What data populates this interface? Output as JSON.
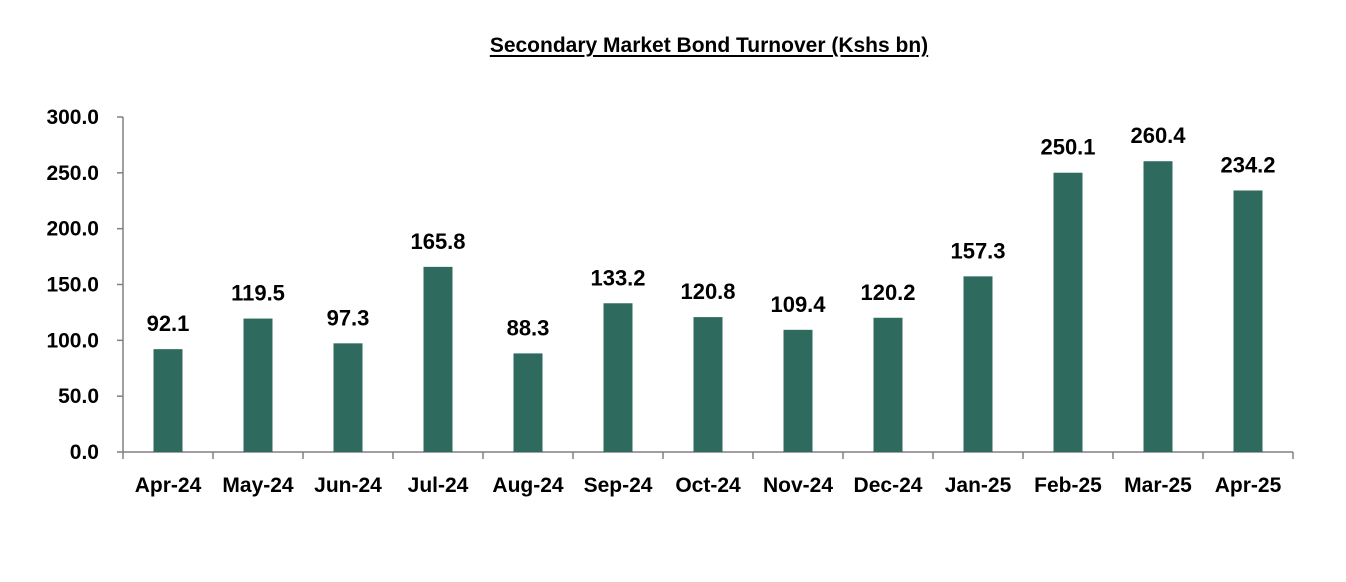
{
  "chart_data": {
    "type": "bar",
    "title": "Secondary Market Bond Turnover (Kshs bn)",
    "xlabel": "",
    "ylabel": "",
    "categories": [
      "Apr-24",
      "May-24",
      "Jun-24",
      "Jul-24",
      "Aug-24",
      "Sep-24",
      "Oct-24",
      "Nov-24",
      "Dec-24",
      "Jan-25",
      "Feb-25",
      "Mar-25",
      "Apr-25"
    ],
    "values": [
      92.1,
      119.5,
      97.3,
      165.8,
      88.3,
      133.2,
      120.8,
      109.4,
      120.2,
      157.3,
      250.1,
      260.4,
      234.2
    ],
    "value_labels": [
      "92.1",
      "119.5",
      "97.3",
      "165.8",
      "88.3",
      "133.2",
      "120.8",
      "109.4",
      "120.2",
      "157.3",
      "250.1",
      "260.4",
      "234.2"
    ],
    "ylim": [
      0,
      300
    ],
    "yticks": [
      "0.0",
      "50.0",
      "100.0",
      "150.0",
      "200.0",
      "250.0",
      "300.0"
    ],
    "grid": false,
    "legend": "none",
    "bar_color": "#2e6b5e"
  }
}
